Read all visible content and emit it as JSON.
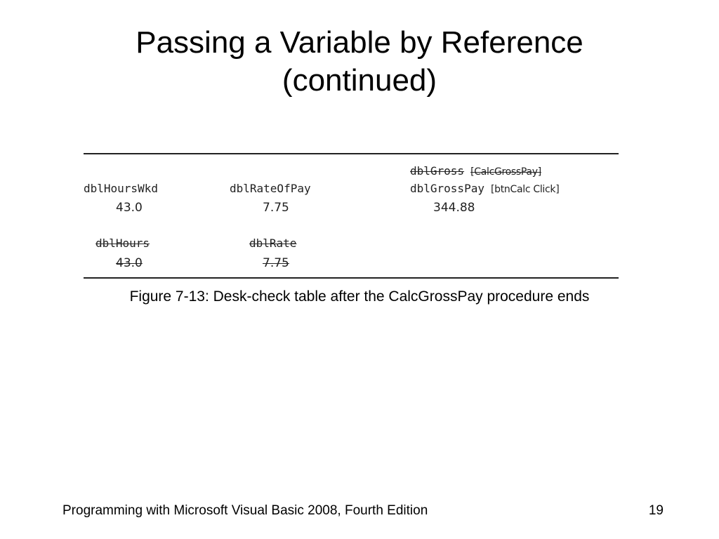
{
  "slide": {
    "title_line1": "Passing a Variable by Reference",
    "title_line2": "(continued)"
  },
  "figure": {
    "caption": "Figure 7-13: Desk-check table after the CalcGrossPay procedure ends",
    "row1": {
      "hours_wkd_name": "dblHoursWkd",
      "rate_of_pay_name": "dblRateOfPay",
      "gross_name": "dblGross",
      "gross_scope": "[CalcGrossPay]",
      "gross_pay_name": "dblGrossPay",
      "gross_pay_scope": "[btnCalc Click]",
      "hours_wkd_value": "43.0",
      "rate_of_pay_value": "7.75",
      "gross_pay_value": "344.88"
    },
    "row2": {
      "hours_name": "dblHours",
      "rate_name": "dblRate",
      "hours_value": "43.0",
      "rate_value": "7.75"
    }
  },
  "footer": {
    "book_title": "Programming with Microsoft Visual Basic 2008, Fourth Edition",
    "page_number": "19"
  }
}
